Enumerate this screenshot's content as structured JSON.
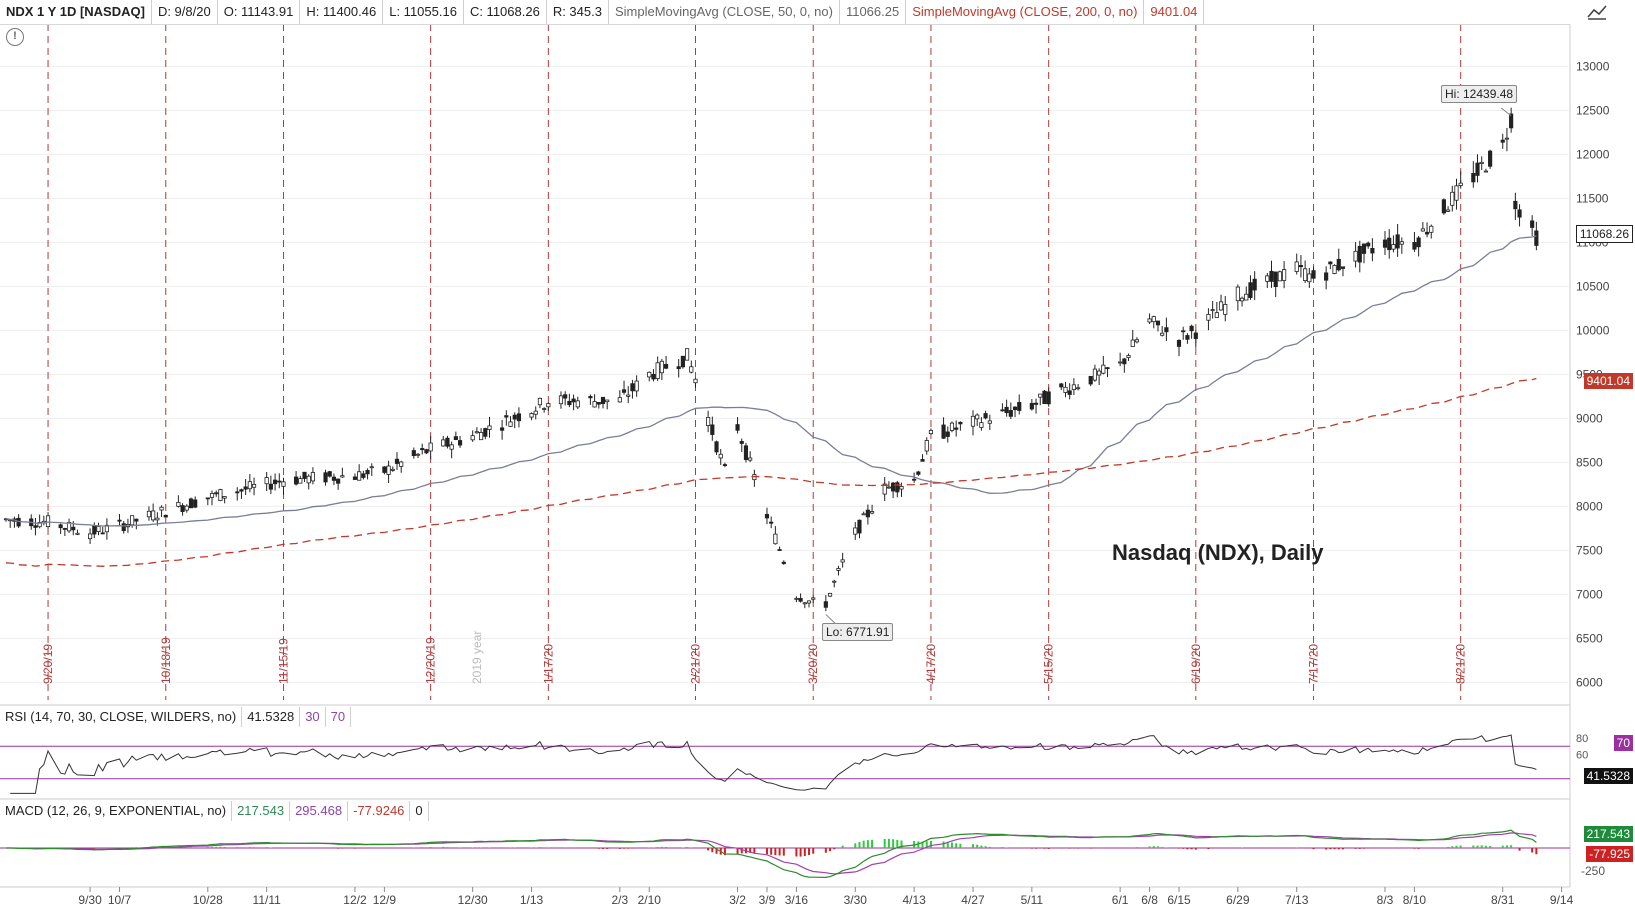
{
  "header": {
    "symbol": "NDX 1 Y 1D [NASDAQ]",
    "date": "D: 9/8/20",
    "open": "O: 11143.91",
    "high": "H: 11400.46",
    "low": "L: 11055.16",
    "close": "C: 11068.26",
    "range": "R: 345.3",
    "sma50_label": "SimpleMovingAvg (CLOSE, 50, 0, no)",
    "sma50_value": "11066.25",
    "sma200_label": "SimpleMovingAvg (CLOSE, 200, 0, no)",
    "sma200_value": "9401.04"
  },
  "rsi_header": {
    "label": "RSI (14, 70, 30, CLOSE, WILDERS, no)",
    "value": "41.5328",
    "low": "30",
    "high": "70"
  },
  "macd_header": {
    "label": "MACD (12, 26, 9, EXPONENTIAL, no)",
    "value": "217.543",
    "avg": "295.468",
    "diff": "-77.9246",
    "zero": "0"
  },
  "chart_title": "Nasdaq (NDX), Daily",
  "annotations": {
    "hi": "Hi: 12439.48",
    "lo": "Lo: 6771.91"
  },
  "badges": {
    "close": "11068.26",
    "sma200": "9401.04",
    "rsi_level": "70",
    "rsi_value": "41.5328",
    "macd_value": "217.543",
    "macd_diff": "-77.925",
    "macd_axis": "-250"
  },
  "colors": {
    "sma50": "#7a7f93",
    "sma200": "#c0392b",
    "event_lines": "#b03a3a",
    "rsi_line": "#333333",
    "rsi_levels": "#9b30a0",
    "macd_line": "#2e8b2e",
    "macd_avg": "#a040b0",
    "hist_pos": "#2ecc40",
    "hist_neg": "#cc2222"
  },
  "icons": [
    "info-icon",
    "chart-style-icon"
  ],
  "chart_data": {
    "type": "candlestick",
    "y_ticks": [
      6000,
      6500,
      7000,
      7500,
      8000,
      8500,
      9000,
      9500,
      10000,
      10500,
      11000,
      11500,
      12000,
      12500,
      13000
    ],
    "ylim": [
      5800,
      13300
    ],
    "x_ticks": [
      "9/30",
      "10/7",
      "10/28",
      "11/11",
      "12/2",
      "12/9",
      "12/30",
      "1/13",
      "2/3",
      "2/10",
      "3/2",
      "3/9",
      "3/16",
      "3/30",
      "4/13",
      "4/27",
      "5/11",
      "6/1",
      "6/8",
      "6/15",
      "6/29",
      "7/13",
      "8/3",
      "8/10",
      "8/31",
      "9/14"
    ],
    "event_dates": [
      "9/20/19",
      "10/18/19",
      "11/15/19",
      "12/20/19",
      "1/17/20",
      "2/21/20",
      "3/20/20",
      "4/17/20",
      "5/15/20",
      "6/19/20",
      "7/17/20",
      "8/21/20"
    ],
    "year_marker": "2019 year",
    "close_path": [
      [
        "9/10/19",
        7850
      ],
      [
        "9/20/19",
        7820
      ],
      [
        "9/30/19",
        7700
      ],
      [
        "10/7/19",
        7780
      ],
      [
        "10/18/19",
        7950
      ],
      [
        "10/28/19",
        8100
      ],
      [
        "11/11/19",
        8250
      ],
      [
        "11/15/19",
        8300
      ],
      [
        "12/2/19",
        8350
      ],
      [
        "12/9/19",
        8400
      ],
      [
        "12/20/19",
        8650
      ],
      [
        "12/30/19",
        8800
      ],
      [
        "1/13/20",
        9100
      ],
      [
        "1/17/20",
        9200
      ],
      [
        "2/3/20",
        9200
      ],
      [
        "2/10/20",
        9500
      ],
      [
        "2/19/20",
        9700
      ],
      [
        "2/21/20",
        9450
      ],
      [
        "2/28/20",
        8400
      ],
      [
        "3/2/20",
        8900
      ],
      [
        "3/9/20",
        7900
      ],
      [
        "3/16/20",
        7000
      ],
      [
        "3/20/20",
        6900
      ],
      [
        "3/23/20",
        6900
      ],
      [
        "3/30/20",
        7700
      ],
      [
        "4/6/20",
        8200
      ],
      [
        "4/13/20",
        8300
      ],
      [
        "4/17/20",
        8800
      ],
      [
        "4/27/20",
        8950
      ],
      [
        "5/11/20",
        9150
      ],
      [
        "5/15/20",
        9250
      ],
      [
        "6/1/20",
        9600
      ],
      [
        "6/8/20",
        10100
      ],
      [
        "6/15/20",
        9900
      ],
      [
        "6/19/20",
        10000
      ],
      [
        "6/29/20",
        10400
      ],
      [
        "7/13/20",
        10700
      ],
      [
        "7/17/20",
        10600
      ],
      [
        "8/3/20",
        11000
      ],
      [
        "8/10/20",
        11000
      ],
      [
        "8/21/20",
        11600
      ],
      [
        "8/31/20",
        12100
      ],
      [
        "9/2/20",
        12420
      ],
      [
        "9/3/20",
        11450
      ],
      [
        "9/8/20",
        11068.26
      ]
    ],
    "hi": 12439.48,
    "lo": 6771.91,
    "sma50_end": 11066.25,
    "sma200_end": 9401.04,
    "rsi": {
      "overbought": 70,
      "oversold": 30,
      "last": 41.5328
    },
    "macd": {
      "value": 217.543,
      "avg": 295.468,
      "diff": -77.9246
    }
  }
}
